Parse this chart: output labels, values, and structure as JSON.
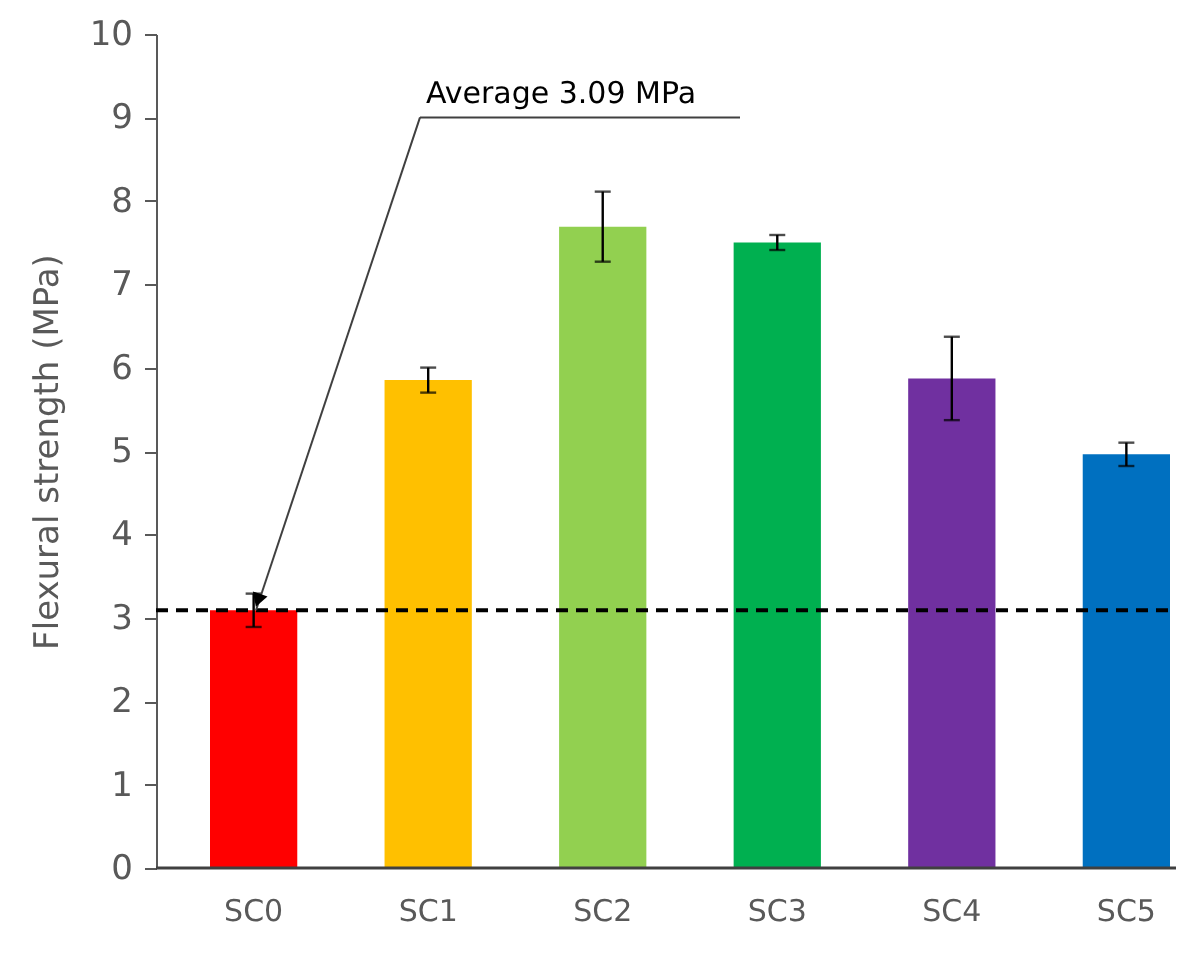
{
  "chart_data": {
    "type": "bar",
    "ylabel": "Flexural strength (MPa)",
    "categories": [
      "SC0",
      "SC1",
      "SC2",
      "SC3",
      "SC4",
      "SC5"
    ],
    "values": [
      3.09,
      5.85,
      7.69,
      7.5,
      5.87,
      4.96
    ],
    "colors": [
      "#ff0000",
      "#ffc000",
      "#92d050",
      "#00b050",
      "#7030a0",
      "#0070c0"
    ],
    "errors": [
      0.2,
      0.15,
      0.42,
      0.09,
      0.5,
      0.14
    ],
    "ylim": [
      0,
      10
    ],
    "yticks": [
      0,
      1,
      2,
      3,
      4,
      5,
      6,
      7,
      8,
      9,
      10
    ],
    "ref_lines": [
      {
        "axis": "y",
        "value": 3.09,
        "label": "Average 3.09 MPa",
        "color": "#000000",
        "line_style": "dashed"
      }
    ]
  }
}
